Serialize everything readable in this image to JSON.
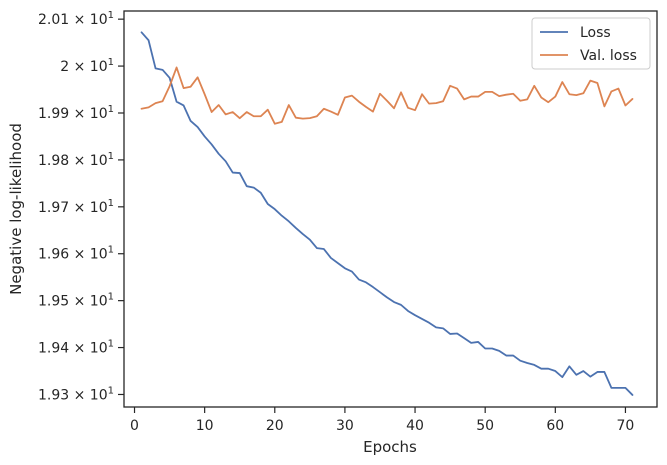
{
  "chart_data": {
    "type": "line",
    "xlabel": "Epochs",
    "ylabel": "Negative log-likelihood",
    "xlim": [
      -1.5,
      74.5
    ],
    "ylim": [
      19.2733,
      20.1174
    ],
    "x_ticks": [
      {
        "value": 0,
        "label": "0"
      },
      {
        "value": 10,
        "label": "10"
      },
      {
        "value": 20,
        "label": "20"
      },
      {
        "value": 30,
        "label": "30"
      },
      {
        "value": 40,
        "label": "40"
      },
      {
        "value": 50,
        "label": "50"
      },
      {
        "value": 60,
        "label": "60"
      },
      {
        "value": 70,
        "label": "70"
      }
    ],
    "y_ticks": [
      {
        "value": 19.3,
        "mantissa": "1.93",
        "base": "10",
        "exp": "1"
      },
      {
        "value": 19.4,
        "mantissa": "1.94",
        "base": "10",
        "exp": "1"
      },
      {
        "value": 19.5,
        "mantissa": "1.95",
        "base": "10",
        "exp": "1"
      },
      {
        "value": 19.6,
        "mantissa": "1.96",
        "base": "10",
        "exp": "1"
      },
      {
        "value": 19.7,
        "mantissa": "1.97",
        "base": "10",
        "exp": "1"
      },
      {
        "value": 19.8,
        "mantissa": "1.98",
        "base": "10",
        "exp": "1"
      },
      {
        "value": 19.9,
        "mantissa": "1.99",
        "base": "10",
        "exp": "1"
      },
      {
        "value": 20.0,
        "mantissa": "2",
        "base": "10",
        "exp": "1"
      },
      {
        "value": 20.1,
        "mantissa": "2.01",
        "base": "10",
        "exp": "1"
      }
    ],
    "legend_position": "top-right",
    "grid": false,
    "x": [
      1,
      2,
      3,
      4,
      5,
      6,
      7,
      8,
      9,
      10,
      11,
      12,
      13,
      14,
      15,
      16,
      17,
      18,
      19,
      20,
      21,
      22,
      23,
      24,
      25,
      26,
      27,
      28,
      29,
      30,
      31,
      32,
      33,
      34,
      35,
      36,
      37,
      38,
      39,
      40,
      41,
      42,
      43,
      44,
      45,
      46,
      47,
      48,
      49,
      50,
      51,
      52,
      53,
      54,
      55,
      56,
      57,
      58,
      59,
      60,
      61,
      62,
      63,
      64,
      65,
      66,
      67,
      68,
      69,
      70,
      71
    ],
    "series": [
      {
        "name": "Loss",
        "color": "#4c72b0",
        "values": [
          20.072,
          20.055,
          19.995,
          19.992,
          19.975,
          19.924,
          19.916,
          19.883,
          19.87,
          19.85,
          19.833,
          19.813,
          19.797,
          19.773,
          19.772,
          19.744,
          19.741,
          19.73,
          19.706,
          19.695,
          19.681,
          19.669,
          19.655,
          19.642,
          19.63,
          19.612,
          19.61,
          19.591,
          19.58,
          19.569,
          19.562,
          19.545,
          19.539,
          19.529,
          19.518,
          19.507,
          19.497,
          19.491,
          19.478,
          19.469,
          19.461,
          19.453,
          19.443,
          19.441,
          19.429,
          19.43,
          19.42,
          19.41,
          19.412,
          19.398,
          19.398,
          19.393,
          19.383,
          19.383,
          19.372,
          19.367,
          19.363,
          19.355,
          19.355,
          19.35,
          19.337,
          19.36,
          19.342,
          19.35,
          19.338,
          19.348,
          19.348,
          19.314,
          19.314,
          19.314,
          19.299
        ]
      },
      {
        "name": "Val. loss",
        "color": "#dd8452",
        "values": [
          19.909,
          19.912,
          19.921,
          19.925,
          19.957,
          19.997,
          19.953,
          19.956,
          19.976,
          19.94,
          19.902,
          19.917,
          19.897,
          19.902,
          19.889,
          19.902,
          19.893,
          19.893,
          19.907,
          19.877,
          19.881,
          19.917,
          19.89,
          19.888,
          19.889,
          19.893,
          19.909,
          19.903,
          19.896,
          19.933,
          19.937,
          19.924,
          19.913,
          19.903,
          19.941,
          19.926,
          19.91,
          19.944,
          19.911,
          19.906,
          19.94,
          19.92,
          19.921,
          19.925,
          19.958,
          19.952,
          19.929,
          19.935,
          19.935,
          19.945,
          19.945,
          19.936,
          19.939,
          19.941,
          19.926,
          19.929,
          19.958,
          19.933,
          19.923,
          19.935,
          19.966,
          19.94,
          19.938,
          19.942,
          19.969,
          19.964,
          19.914,
          19.946,
          19.952,
          19.916,
          19.93
        ]
      }
    ]
  }
}
